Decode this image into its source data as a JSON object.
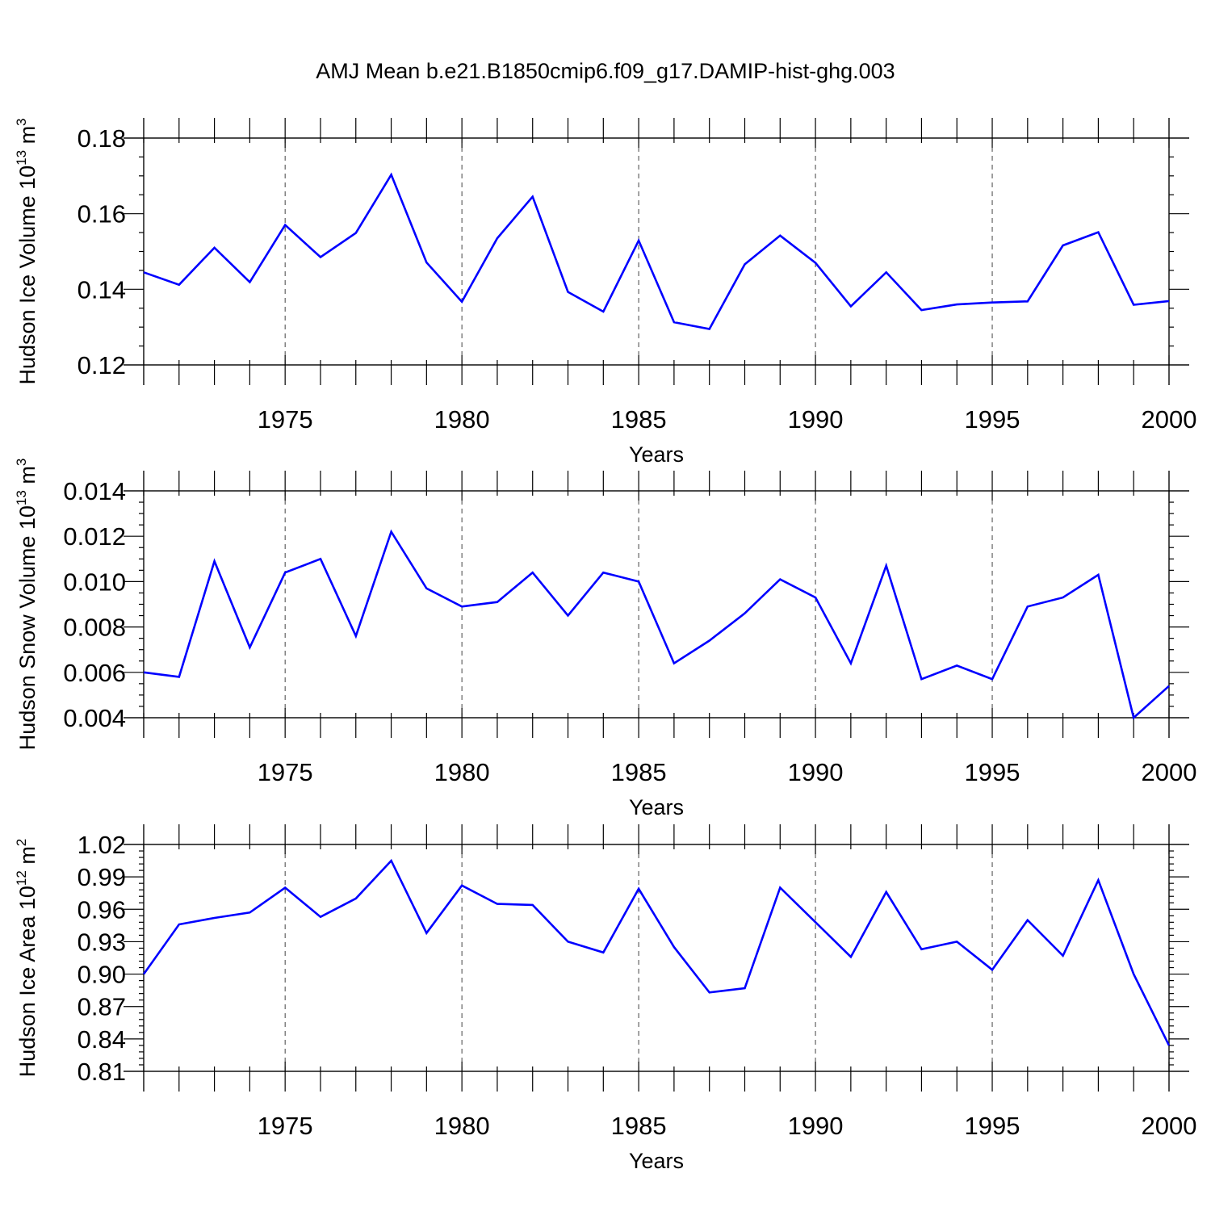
{
  "figure": {
    "title": "AMJ Mean b.e21.B1850cmip6.f09_g17.DAMIP-hist-ghg.003",
    "line_color": "#0000ff"
  },
  "chart_data": [
    {
      "type": "line",
      "title": "",
      "xlabel": "Years",
      "ylabel": "Hudson Ice Volume 10",
      "ylabel_exp": "13",
      "ylabel_unit": " m",
      "ylabel_unit_exp": "3",
      "xlim": [
        1971,
        2000
      ],
      "ylim": [
        0.12,
        0.18
      ],
      "yticks": [
        0.12,
        0.14,
        0.16,
        0.18
      ],
      "yticklabels": [
        "0.12",
        "0.14",
        "0.16",
        "0.18"
      ],
      "ymajor_step": 0.02,
      "yminor_step": 0.005,
      "xticks": [
        1975,
        1980,
        1985,
        1990,
        1995,
        2000
      ],
      "xticklabels": [
        "1975",
        "1980",
        "1985",
        "1990",
        "1995",
        "2000"
      ],
      "grid": "vertical dashed at major x ticks",
      "x": [
        1971,
        1972,
        1973,
        1974,
        1975,
        1976,
        1977,
        1978,
        1979,
        1980,
        1981,
        1982,
        1983,
        1984,
        1985,
        1986,
        1987,
        1988,
        1989,
        1990,
        1991,
        1992,
        1993,
        1994,
        1995,
        1996,
        1997,
        1998,
        1999,
        2000
      ],
      "values": [
        0.1445,
        0.1412,
        0.151,
        0.1419,
        0.157,
        0.1485,
        0.1549,
        0.1703,
        0.1471,
        0.1367,
        0.1535,
        0.1645,
        0.1393,
        0.1341,
        0.1529,
        0.1313,
        0.1295,
        0.1466,
        0.1542,
        0.147,
        0.1355,
        0.1445,
        0.1345,
        0.136,
        0.1365,
        0.1368,
        0.1516,
        0.1551,
        0.1359,
        0.1369
      ]
    },
    {
      "type": "line",
      "title": "",
      "xlabel": "Years",
      "ylabel": "Hudson Snow Volume 10",
      "ylabel_exp": "13",
      "ylabel_unit": " m",
      "ylabel_unit_exp": "3",
      "xlim": [
        1971,
        2000
      ],
      "ylim": [
        0.004,
        0.014
      ],
      "yticks": [
        0.004,
        0.006,
        0.008,
        0.01,
        0.012,
        0.014
      ],
      "yticklabels": [
        "0.004",
        "0.006",
        "0.008",
        "0.010",
        "0.012",
        "0.014"
      ],
      "ymajor_step": 0.002,
      "yminor_step": 0.0005,
      "xticks": [
        1975,
        1980,
        1985,
        1990,
        1995,
        2000
      ],
      "xticklabels": [
        "1975",
        "1980",
        "1985",
        "1990",
        "1995",
        "2000"
      ],
      "grid": "vertical dashed at major x ticks",
      "x": [
        1971,
        1972,
        1973,
        1974,
        1975,
        1976,
        1977,
        1978,
        1979,
        1980,
        1981,
        1982,
        1983,
        1984,
        1985,
        1986,
        1987,
        1988,
        1989,
        1990,
        1991,
        1992,
        1993,
        1994,
        1995,
        1996,
        1997,
        1998,
        1999,
        2000
      ],
      "values": [
        0.006,
        0.0058,
        0.0109,
        0.0071,
        0.0104,
        0.011,
        0.0076,
        0.0122,
        0.0097,
        0.0089,
        0.0091,
        0.0104,
        0.0085,
        0.0104,
        0.01,
        0.0064,
        0.0074,
        0.0086,
        0.0101,
        0.0093,
        0.0064,
        0.0107,
        0.0057,
        0.0063,
        0.0057,
        0.0089,
        0.0093,
        0.0103,
        0.004,
        0.0054
      ]
    },
    {
      "type": "line",
      "title": "",
      "xlabel": "Years",
      "ylabel": "Hudson Ice Area 10",
      "ylabel_exp": "12",
      "ylabel_unit": " m",
      "ylabel_unit_exp": "2",
      "xlim": [
        1971,
        2000
      ],
      "ylim": [
        0.81,
        1.02
      ],
      "yticks": [
        0.81,
        0.84,
        0.87,
        0.9,
        0.93,
        0.96,
        0.99,
        1.02
      ],
      "yticklabels": [
        "0.81",
        "0.84",
        "0.87",
        "0.90",
        "0.93",
        "0.96",
        "0.99",
        "1.02"
      ],
      "ymajor_step": 0.03,
      "yminor_step": 0.006,
      "xticks": [
        1975,
        1980,
        1985,
        1990,
        1995,
        2000
      ],
      "xticklabels": [
        "1975",
        "1980",
        "1985",
        "1990",
        "1995",
        "2000"
      ],
      "grid": "vertical dashed at major x ticks",
      "x": [
        1971,
        1972,
        1973,
        1974,
        1975,
        1976,
        1977,
        1978,
        1979,
        1980,
        1981,
        1982,
        1983,
        1984,
        1985,
        1986,
        1987,
        1988,
        1989,
        1990,
        1991,
        1992,
        1993,
        1994,
        1995,
        1996,
        1997,
        1998,
        1999,
        2000
      ],
      "values": [
        0.9,
        0.946,
        0.952,
        0.957,
        0.98,
        0.953,
        0.97,
        1.005,
        0.938,
        0.982,
        0.965,
        0.964,
        0.93,
        0.92,
        0.979,
        0.925,
        0.883,
        0.887,
        0.98,
        0.948,
        0.916,
        0.976,
        0.923,
        0.93,
        0.904,
        0.95,
        0.917,
        0.987,
        0.9,
        0.834
      ]
    }
  ]
}
